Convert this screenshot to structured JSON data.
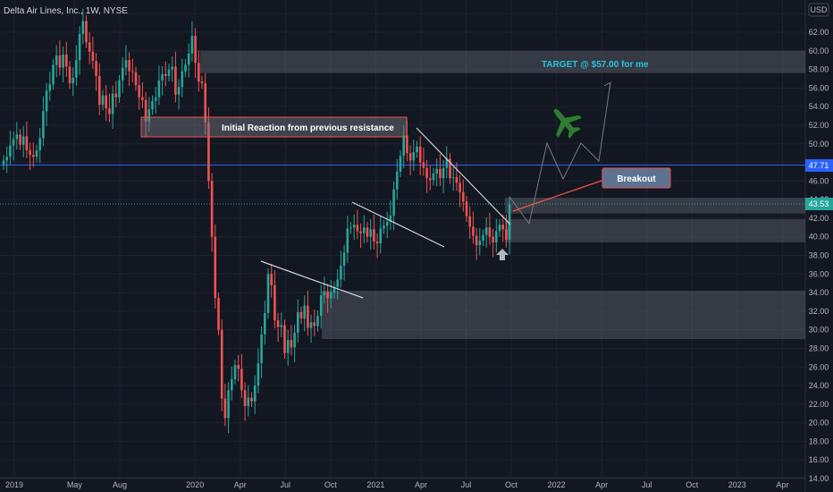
{
  "header": {
    "title": "Delta Air Lines, Inc., 1W, NYSE",
    "currency": "USD"
  },
  "colors": {
    "up": "#26a69a",
    "down": "#ef5350",
    "bg": "#131722",
    "grid": "#1e222d",
    "hline": "#2962ff",
    "zone": "#787b86",
    "target_text": "#26c6da",
    "plane": "#2e7d32",
    "arrow_up": "#b2b5be"
  },
  "chart_data": {
    "type": "candlestick",
    "title": "Delta Air Lines, Inc., 1W, NYSE",
    "ylim": [
      14,
      64
    ],
    "yticks": [
      14,
      16,
      18,
      20,
      22,
      24,
      26,
      28,
      30,
      32,
      34,
      36,
      38,
      40,
      42,
      44,
      46,
      48,
      50,
      52,
      54,
      56,
      58,
      60,
      62,
      64
    ],
    "ytick_labels": [
      "14.00",
      "16.00",
      "18.00",
      "20.00",
      "22.00",
      "24.00",
      "26.00",
      "28.00",
      "30.00",
      "32.00",
      "34.00",
      "36.00",
      "38.00",
      "40.00",
      "42.00",
      "44.00",
      "46.00",
      "48.00",
      "50.00",
      "52.00",
      "54.00",
      "56.00",
      "58.00",
      "60.00",
      "62.00",
      "64.00"
    ],
    "xticks": [
      {
        "label": "2019",
        "date": "2019-01"
      },
      {
        "label": "May",
        "date": "2019-05"
      },
      {
        "label": "Aug",
        "date": "2019-08"
      },
      {
        "label": "2020",
        "date": "2020-01"
      },
      {
        "label": "Apr",
        "date": "2020-04"
      },
      {
        "label": "Jul",
        "date": "2020-07"
      },
      {
        "label": "Oct",
        "date": "2020-10"
      },
      {
        "label": "2021",
        "date": "2021-01"
      },
      {
        "label": "Apr",
        "date": "2021-04"
      },
      {
        "label": "Jul",
        "date": "2021-07"
      },
      {
        "label": "Oct",
        "date": "2021-10"
      },
      {
        "label": "2022",
        "date": "2022-01"
      },
      {
        "label": "Apr",
        "date": "2022-04"
      },
      {
        "label": "Jul",
        "date": "2022-07"
      },
      {
        "label": "Oct",
        "date": "2022-10"
      },
      {
        "label": "2023",
        "date": "2023-01"
      },
      {
        "label": "Apr",
        "date": "2023-04"
      }
    ],
    "close_series": [
      48.2,
      48.6,
      49.8,
      50.5,
      51.0,
      49.9,
      50.8,
      49.3,
      48.8,
      48.6,
      49.3,
      50.6,
      53.5,
      55.7,
      56.4,
      58.5,
      59.5,
      58.2,
      59.6,
      58.3,
      56.5,
      57.1,
      59.0,
      61.8,
      63.2,
      60.9,
      59.9,
      58.9,
      57.3,
      54.2,
      55.2,
      53.8,
      53.2,
      55.4,
      55.0,
      56.8,
      58.2,
      59.0,
      57.8,
      57.7,
      56.3,
      55.0,
      54.7,
      52.4,
      53.7,
      54.6,
      55.0,
      56.8,
      57.5,
      57.3,
      58.0,
      58.3,
      55.3,
      56.1,
      57.8,
      58.5,
      59.7,
      61.6,
      58.7,
      56.7,
      56.5,
      52.3,
      46.0,
      40.0,
      33.4,
      30.0,
      22.6,
      20.5,
      23.5,
      24.7,
      26.2,
      25.8,
      23.5,
      21.8,
      22.7,
      22.3,
      24.0,
      26.4,
      29.5,
      31.8,
      36.0,
      34.8,
      31.0,
      30.3,
      30.5,
      27.5,
      28.9,
      28.1,
      29.7,
      31.9,
      31.2,
      32.6,
      30.2,
      30.8,
      30.4,
      31.5,
      33.7,
      34.1,
      33.4,
      34.0,
      34.6,
      35.4,
      36.9,
      38.3,
      40.9,
      41.0,
      41.3,
      40.6,
      40.4,
      41.0,
      40.0,
      40.8,
      39.5,
      39.3,
      40.9,
      41.2,
      41.6,
      42.3,
      45.1,
      47.0,
      48.7,
      50.9,
      49.0,
      48.2,
      49.1,
      49.7,
      48.0,
      47.4,
      46.3,
      46.1,
      46.8,
      47.3,
      46.3,
      47.4,
      48.4,
      46.3,
      46.4,
      45.8,
      44.8,
      43.8,
      42.2,
      41.1,
      40.1,
      39.1,
      39.6,
      40.2,
      41.0,
      40.0,
      39.4,
      40.6,
      41.3,
      40.8,
      39.7,
      43.5
    ],
    "current_price": 43.53,
    "current_price_label": "43.53",
    "hline_level": 47.71,
    "hline_label": "47.71",
    "axis_label_partial": "44.00",
    "zones": [
      {
        "from": 57.6,
        "to": 60.0
      },
      {
        "from": 51.2,
        "to": 53.2
      },
      {
        "from": 42.5,
        "to": 44.2
      },
      {
        "from": 39.4,
        "to": 41.9
      },
      {
        "from": 29.0,
        "to": 34.2
      }
    ],
    "annotations": [
      {
        "text": "TARGET @ $57.00 for me",
        "price": 58.8
      },
      {
        "text": "Initial Reaction from previous resistance",
        "price": 52.2
      },
      {
        "text": "Breakout",
        "price": 45.9
      }
    ]
  }
}
